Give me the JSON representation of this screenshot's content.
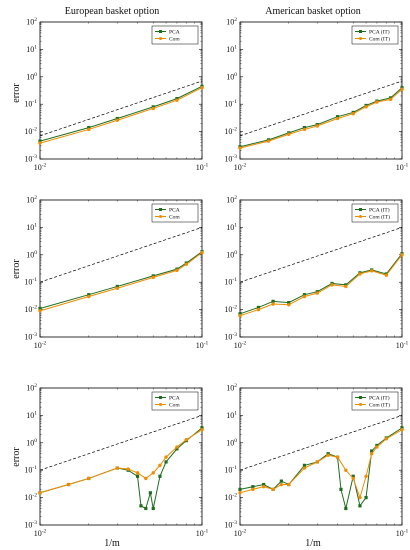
{
  "column_titles": [
    "European basket option",
    "American basket option"
  ],
  "x_axis_label": "1/m",
  "y_axis_label": "error",
  "colors": {
    "pca": "#1f6e1f",
    "com": "#f08c00",
    "ref": "#000000"
  },
  "chart_data": [
    {
      "type": "line",
      "xscale": "log",
      "yscale": "log",
      "xlim": [
        0.01,
        0.1
      ],
      "ylim": [
        0.001,
        100
      ],
      "legend_position": "top-right",
      "legend": [
        "PCA",
        "Com"
      ],
      "x_ticks": [
        "10^-2",
        "10^-1"
      ],
      "y_ticks": [
        "10^-3",
        "10^-2",
        "10^-1",
        "10^0",
        "10^1",
        "10^2"
      ],
      "reference_line": {
        "x": [
          0.01,
          0.1
        ],
        "y": [
          0.007,
          0.7
        ]
      },
      "series": [
        {
          "name": "PCA",
          "x": [
            0.01,
            0.02,
            0.03,
            0.05,
            0.07,
            0.1
          ],
          "y": [
            0.0045,
            0.014,
            0.03,
            0.08,
            0.16,
            0.45
          ]
        },
        {
          "name": "Com",
          "x": [
            0.01,
            0.02,
            0.03,
            0.05,
            0.07,
            0.1
          ],
          "y": [
            0.0038,
            0.012,
            0.026,
            0.07,
            0.14,
            0.4
          ]
        }
      ]
    },
    {
      "type": "line",
      "xscale": "log",
      "yscale": "log",
      "xlim": [
        0.01,
        0.1
      ],
      "ylim": [
        0.001,
        100
      ],
      "legend_position": "top-right",
      "legend": [
        "PCA (IT)",
        "Com (IT)"
      ],
      "x_ticks": [
        "10^-2",
        "10^-1"
      ],
      "y_ticks": [
        "10^-3",
        "10^-2",
        "10^-1",
        "10^0",
        "10^1",
        "10^2"
      ],
      "reference_line": {
        "x": [
          0.01,
          0.1
        ],
        "y": [
          0.007,
          0.7
        ]
      },
      "series": [
        {
          "name": "PCA (IT)",
          "x": [
            0.01,
            0.015,
            0.02,
            0.025,
            0.03,
            0.04,
            0.05,
            0.06,
            0.07,
            0.085,
            0.1
          ],
          "y": [
            0.0028,
            0.005,
            0.009,
            0.014,
            0.018,
            0.035,
            0.05,
            0.09,
            0.13,
            0.17,
            0.4
          ]
        },
        {
          "name": "Com (IT)",
          "x": [
            0.01,
            0.015,
            0.02,
            0.025,
            0.03,
            0.04,
            0.05,
            0.06,
            0.07,
            0.085,
            0.1
          ],
          "y": [
            0.0025,
            0.0045,
            0.008,
            0.012,
            0.016,
            0.03,
            0.045,
            0.08,
            0.12,
            0.15,
            0.35
          ]
        }
      ]
    },
    {
      "type": "line",
      "xscale": "log",
      "yscale": "log",
      "xlim": [
        0.01,
        0.1
      ],
      "ylim": [
        0.001,
        100
      ],
      "legend_position": "top-right",
      "legend": [
        "PCA",
        "Com"
      ],
      "x_ticks": [
        "10^-2",
        "10^-1"
      ],
      "y_ticks": [
        "10^-3",
        "10^-2",
        "10^-1",
        "10^0",
        "10^1",
        "10^2"
      ],
      "reference_line": {
        "x": [
          0.01,
          0.1
        ],
        "y": [
          0.1,
          10
        ]
      },
      "series": [
        {
          "name": "PCA",
          "x": [
            0.01,
            0.02,
            0.03,
            0.05,
            0.07,
            0.08,
            0.1
          ],
          "y": [
            0.011,
            0.035,
            0.07,
            0.17,
            0.3,
            0.5,
            1.3
          ]
        },
        {
          "name": "Com",
          "x": [
            0.01,
            0.02,
            0.03,
            0.05,
            0.07,
            0.08,
            0.1
          ],
          "y": [
            0.009,
            0.03,
            0.06,
            0.15,
            0.27,
            0.45,
            1.2
          ]
        }
      ]
    },
    {
      "type": "line",
      "xscale": "log",
      "yscale": "log",
      "xlim": [
        0.01,
        0.1
      ],
      "ylim": [
        0.001,
        100
      ],
      "legend_position": "top-right",
      "legend": [
        "PCA (IT)",
        "Com (IT)"
      ],
      "x_ticks": [
        "10^-2",
        "10^-1"
      ],
      "y_ticks": [
        "10^-3",
        "10^-2",
        "10^-1",
        "10^0",
        "10^1",
        "10^2"
      ],
      "reference_line": {
        "x": [
          0.01,
          0.1
        ],
        "y": [
          0.1,
          10
        ]
      },
      "series": [
        {
          "name": "PCA (IT)",
          "x": [
            0.01,
            0.013,
            0.016,
            0.02,
            0.025,
            0.03,
            0.037,
            0.045,
            0.055,
            0.065,
            0.08,
            0.1
          ],
          "y": [
            0.007,
            0.012,
            0.02,
            0.018,
            0.035,
            0.045,
            0.09,
            0.08,
            0.22,
            0.28,
            0.2,
            1.1
          ]
        },
        {
          "name": "Com (IT)",
          "x": [
            0.01,
            0.013,
            0.016,
            0.02,
            0.025,
            0.03,
            0.037,
            0.045,
            0.055,
            0.065,
            0.08,
            0.1
          ],
          "y": [
            0.006,
            0.01,
            0.016,
            0.015,
            0.03,
            0.04,
            0.08,
            0.07,
            0.2,
            0.26,
            0.18,
            1.0
          ]
        }
      ]
    },
    {
      "type": "line",
      "xscale": "log",
      "yscale": "log",
      "xlim": [
        0.01,
        0.1
      ],
      "ylim": [
        0.001,
        100
      ],
      "legend_position": "top-right",
      "legend": [
        "PCA",
        "Com"
      ],
      "x_ticks": [
        "10^-2",
        "10^-1"
      ],
      "y_ticks": [
        "10^-3",
        "10^-2",
        "10^-1",
        "10^0",
        "10^1",
        "10^2"
      ],
      "reference_line": {
        "x": [
          0.01,
          0.1
        ],
        "y": [
          0.1,
          10
        ]
      },
      "series": [
        {
          "name": "PCA",
          "x": [
            0.01,
            0.015,
            0.02,
            0.03,
            0.035,
            0.04,
            0.042,
            0.045,
            0.048,
            0.05,
            0.055,
            0.06,
            0.07,
            0.08,
            0.1
          ],
          "y": [
            0.015,
            0.03,
            0.05,
            0.12,
            0.1,
            0.06,
            0.005,
            0.004,
            0.015,
            0.004,
            0.06,
            0.2,
            0.6,
            1.2,
            3.5
          ]
        },
        {
          "name": "Com",
          "x": [
            0.01,
            0.015,
            0.02,
            0.03,
            0.035,
            0.04,
            0.045,
            0.05,
            0.055,
            0.06,
            0.07,
            0.08,
            0.1
          ],
          "y": [
            0.015,
            0.03,
            0.05,
            0.12,
            0.11,
            0.08,
            0.05,
            0.08,
            0.15,
            0.3,
            0.7,
            1.3,
            3.0
          ]
        }
      ]
    },
    {
      "type": "line",
      "xscale": "log",
      "yscale": "log",
      "xlim": [
        0.01,
        0.1
      ],
      "ylim": [
        0.001,
        100
      ],
      "legend_position": "top-right",
      "legend": [
        "PCA (IT)",
        "Com (IT)"
      ],
      "x_ticks": [
        "10^-2",
        "10^-1"
      ],
      "y_ticks": [
        "10^-3",
        "10^-2",
        "10^-1",
        "10^0",
        "10^1",
        "10^2"
      ],
      "reference_line": {
        "x": [
          0.01,
          0.1
        ],
        "y": [
          0.1,
          10
        ]
      },
      "series": [
        {
          "name": "PCA (IT)",
          "x": [
            0.01,
            0.012,
            0.014,
            0.016,
            0.018,
            0.02,
            0.025,
            0.03,
            0.035,
            0.04,
            0.042,
            0.045,
            0.05,
            0.055,
            0.06,
            0.065,
            0.07,
            0.08,
            0.1
          ],
          "y": [
            0.02,
            0.025,
            0.03,
            0.02,
            0.04,
            0.03,
            0.15,
            0.2,
            0.4,
            0.3,
            0.02,
            0.004,
            0.06,
            0.005,
            0.01,
            0.5,
            0.8,
            1.5,
            3.5
          ]
        },
        {
          "name": "Com (IT)",
          "x": [
            0.01,
            0.012,
            0.014,
            0.016,
            0.018,
            0.02,
            0.025,
            0.03,
            0.035,
            0.04,
            0.045,
            0.05,
            0.055,
            0.06,
            0.065,
            0.07,
            0.08,
            0.1
          ],
          "y": [
            0.015,
            0.02,
            0.025,
            0.02,
            0.03,
            0.03,
            0.12,
            0.2,
            0.35,
            0.3,
            0.1,
            0.05,
            0.01,
            0.06,
            0.4,
            0.7,
            1.4,
            3.0
          ]
        }
      ]
    }
  ]
}
